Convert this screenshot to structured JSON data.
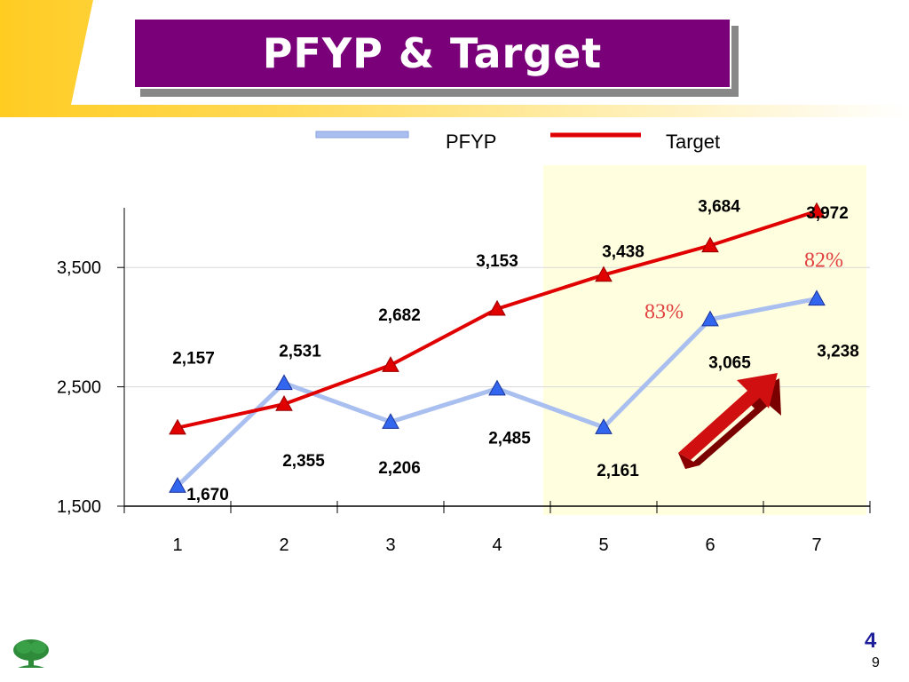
{
  "slide": {
    "title": "PFYP & Target",
    "section_number": "4",
    "page_number": "9"
  },
  "colors": {
    "title_bg": "#7a007a",
    "pfyp_line": "#a9bff0",
    "pfyp_marker": "#3366ee",
    "target_line": "#e00000",
    "highlight_bg": "#ffffe0",
    "percent_text": "#e04040"
  },
  "chart_data": {
    "type": "line",
    "categories": [
      "1",
      "2",
      "3",
      "4",
      "5",
      "6",
      "7"
    ],
    "series": [
      {
        "name": "PFYP",
        "values": [
          1670,
          2531,
          2206,
          2485,
          2161,
          3065,
          3238
        ],
        "labels": [
          "1,670",
          "2,531",
          "2,206",
          "2,485",
          "2,161",
          "3,065",
          "3,238"
        ]
      },
      {
        "name": "Target",
        "values": [
          2157,
          2355,
          2682,
          3153,
          3438,
          3684,
          3972
        ],
        "labels": [
          "2,157",
          "2,355",
          "2,682",
          "3,153",
          "3,438",
          "3,684",
          "3,972"
        ]
      }
    ],
    "yticks": [
      "1,500",
      "2,500",
      "3,500"
    ],
    "ytick_values": [
      1500,
      2500,
      3500
    ],
    "ylim": [
      1500,
      4000
    ],
    "legend": {
      "position": "top",
      "entries": [
        "PFYP",
        "Target"
      ]
    },
    "highlighted_categories": [
      "5",
      "6",
      "7"
    ],
    "annotations": [
      {
        "category": "6",
        "text": "83%"
      },
      {
        "category": "7",
        "text": "82%"
      }
    ],
    "trend_arrow": "up-right-arrow"
  }
}
